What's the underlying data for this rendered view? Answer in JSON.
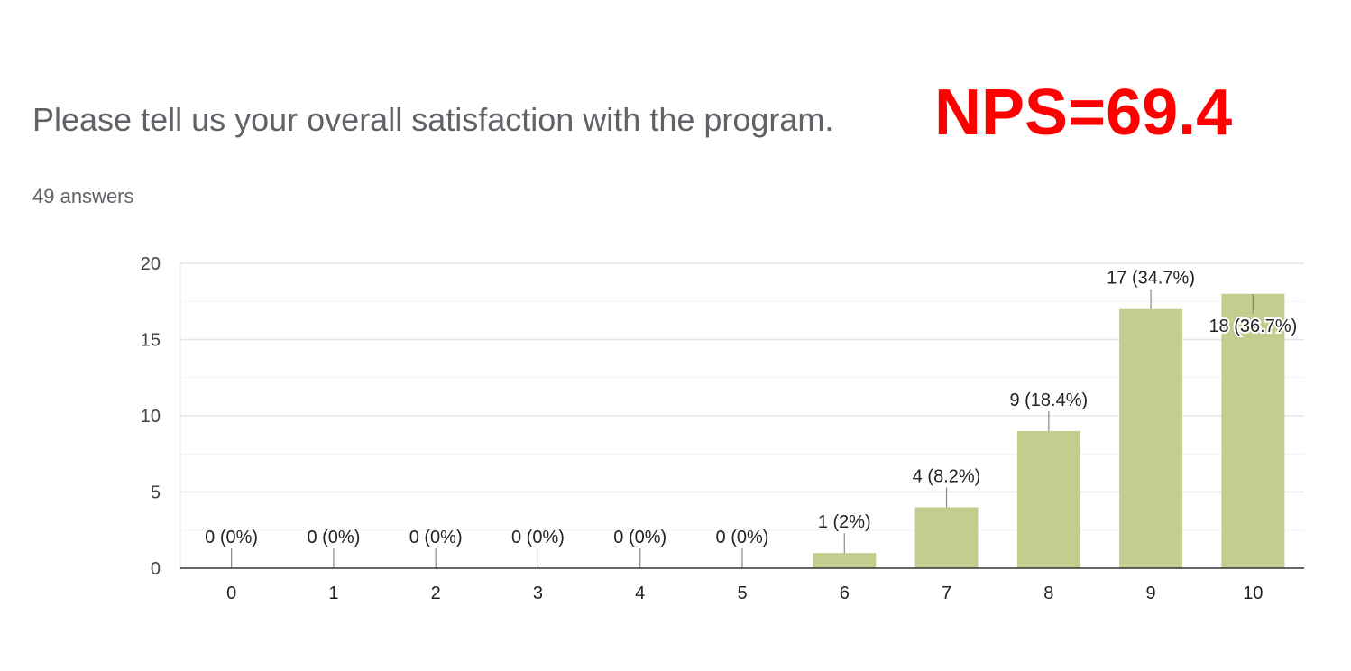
{
  "header": {
    "question": "Please tell us your overall satisfaction with the program.",
    "nps_label": "NPS=69.4",
    "nps_color": "#ff0000",
    "answers_count": "49 answers"
  },
  "chart_data": {
    "type": "bar",
    "categories": [
      "0",
      "1",
      "2",
      "3",
      "4",
      "5",
      "6",
      "7",
      "8",
      "9",
      "10"
    ],
    "values": [
      0,
      0,
      0,
      0,
      0,
      0,
      1,
      4,
      9,
      17,
      18
    ],
    "data_labels": [
      "0 (0%)",
      "0 (0%)",
      "0 (0%)",
      "0 (0%)",
      "0 (0%)",
      "0 (0%)",
      "1 (2%)",
      "4 (8.2%)",
      "9 (18.4%)",
      "17 (34.7%)",
      "18 (36.7%)"
    ],
    "y_ticks": [
      0,
      5,
      10,
      15,
      20
    ],
    "ylim": [
      0,
      20
    ],
    "grid": true,
    "legend": "none",
    "bar_color": "#c2cd8e"
  }
}
